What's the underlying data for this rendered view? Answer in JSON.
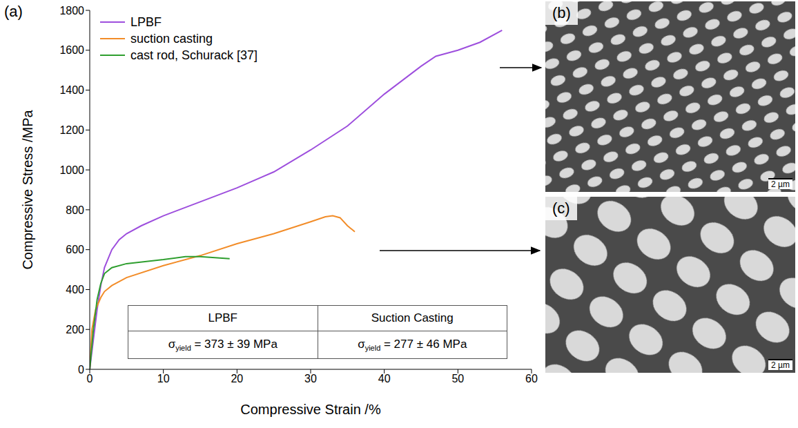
{
  "chart_data": {
    "type": "line",
    "panel_label": "(a)",
    "xlabel": "Compressive Strain /%",
    "ylabel": "Compressive Stress /MPa",
    "xlim": [
      0,
      60
    ],
    "xticks": [
      0,
      10,
      20,
      30,
      40,
      50,
      60
    ],
    "ylim": [
      0,
      1800
    ],
    "yticks": [
      0,
      200,
      400,
      600,
      800,
      1000,
      1200,
      1400,
      1600,
      1800
    ],
    "grid": false,
    "legend": "upper left",
    "series": [
      {
        "name": "LPBF",
        "color": "#9d4edd",
        "x": [
          0,
          0.5,
          1,
          1.5,
          2,
          3,
          4,
          5,
          7,
          10,
          15,
          20,
          25,
          30,
          35,
          40,
          45,
          47,
          50,
          53,
          56
        ],
        "values": [
          0,
          150,
          300,
          420,
          510,
          600,
          650,
          680,
          720,
          770,
          840,
          910,
          990,
          1100,
          1220,
          1380,
          1520,
          1570,
          1600,
          1640,
          1700
        ]
      },
      {
        "name": "suction casting",
        "color": "#f28c28",
        "x": [
          0,
          0.3,
          0.8,
          1.5,
          2,
          3,
          5,
          10,
          15,
          20,
          25,
          30,
          32,
          33,
          34,
          35,
          36
        ],
        "values": [
          0,
          200,
          300,
          360,
          390,
          420,
          460,
          520,
          570,
          630,
          680,
          740,
          765,
          770,
          760,
          720,
          690
        ]
      },
      {
        "name": "cast rod, Schurack [37]",
        "color": "#2e9e2e",
        "x": [
          0,
          0.5,
          1,
          1.5,
          2,
          3,
          5,
          10,
          13,
          15,
          17,
          19
        ],
        "values": [
          0,
          200,
          350,
          430,
          480,
          510,
          530,
          550,
          565,
          565,
          560,
          555
        ]
      }
    ],
    "table": {
      "headers": [
        "LPBF",
        "Suction Casting"
      ],
      "cells": [
        {
          "symbol": "σ",
          "subscript": "yield",
          "text": " = 373 ± 39 MPa"
        },
        {
          "symbol": "σ",
          "subscript": "yield",
          "text": " = 277 ± 46 MPa"
        }
      ]
    },
    "micrographs": [
      {
        "label": "(b)",
        "scale_bar": "2 µm"
      },
      {
        "label": "(c)",
        "scale_bar": "2 µm"
      }
    ]
  }
}
